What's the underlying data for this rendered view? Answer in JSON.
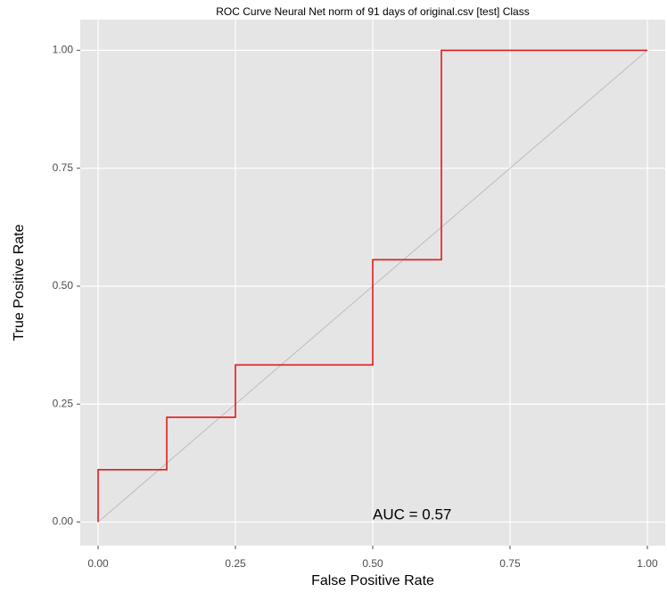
{
  "chart_data": {
    "type": "line",
    "title": "ROC Curve Neural Net norm of 91 days of original.csv [test] Class",
    "x_label": "False Positive Rate",
    "y_label": "True Positive Rate",
    "annotation": "AUC = 0.57",
    "x": [
      0,
      0,
      0.125,
      0.125,
      0.25,
      0.25,
      0.5,
      0.5,
      0.625,
      0.625,
      1
    ],
    "series": [
      {
        "color": "#e31a1c",
        "values": [
          0,
          0.111,
          0.111,
          0.222,
          0.222,
          0.333,
          0.333,
          0.556,
          0.556,
          1,
          1
        ]
      }
    ],
    "step": true,
    "diagonal": true,
    "diagonal_color": "#bdbdbd",
    "xlim": [
      -0.0325,
      1.0325
    ],
    "ylim": [
      -0.05,
      1.065
    ],
    "xticks": [
      {
        "value": 0,
        "label": "0.00"
      },
      {
        "value": 0.25,
        "label": "0.25"
      },
      {
        "value": 0.5,
        "label": "0.50"
      },
      {
        "value": 0.75,
        "label": "0.75"
      },
      {
        "value": 1,
        "label": "1.00"
      }
    ],
    "yticks": [
      {
        "value": 0,
        "label": "0.00"
      },
      {
        "value": 0.25,
        "label": "0.25"
      },
      {
        "value": 0.5,
        "label": "0.50"
      },
      {
        "value": 0.75,
        "label": "0.75"
      },
      {
        "value": 1,
        "label": "1.00"
      }
    ],
    "grid": true
  }
}
